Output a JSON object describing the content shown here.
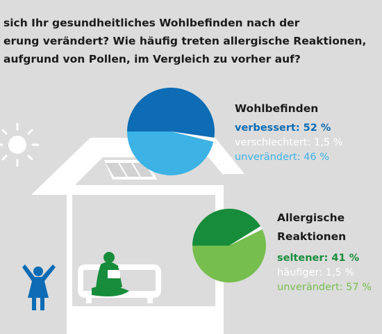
{
  "question": "sich Ihr gesundheitliches Wohlbefinden nach der\nerung verändert? Wie häufig treten allergische Reaktionen,\naufgrund von Pollen, im Vergleich zu vorher auf?",
  "colors": {
    "background": "#dcdcdc",
    "illustration": "#ffffff",
    "blue_dark": "#0d6cb4",
    "blue_light": "#3cb2e5",
    "green_dark": "#178c3a",
    "green_light": "#76be4e",
    "neutral": "#ffffff",
    "figures_child": "#0d6cb4",
    "figures_reader": "#178c3a"
  },
  "illustration": {
    "icons": [
      "sun-icon",
      "house-icon",
      "solar-panel-icon",
      "child-figure-icon",
      "reading-person-icon",
      "sofa-icon"
    ]
  },
  "chart_data": [
    {
      "type": "pie",
      "title": "Wohlbefinden",
      "slices": [
        {
          "label": "verbessert",
          "value": 52,
          "display": "verbessert: 52 %",
          "color": "#0d6cb4",
          "bold": true
        },
        {
          "label": "verschlechtert",
          "value": 1.5,
          "display": "verschlechtert: 1,5 %",
          "color": "#ffffff",
          "bold": false
        },
        {
          "label": "unverändert",
          "value": 46,
          "display": "unverändert: 46 %",
          "color": "#3cb2e5",
          "bold": false
        }
      ]
    },
    {
      "type": "pie",
      "title": "Allergische\nReaktionen",
      "slices": [
        {
          "label": "seltener",
          "value": 41,
          "display": "seltener: 41 %",
          "color": "#178c3a",
          "bold": true
        },
        {
          "label": "häufiger",
          "value": 1.5,
          "display": "häufiger: 1,5 %",
          "color": "#ffffff",
          "bold": false
        },
        {
          "label": "unverändert",
          "value": 57,
          "display": "unverändert: 57 %",
          "color": "#76be4e",
          "bold": false
        }
      ]
    }
  ]
}
